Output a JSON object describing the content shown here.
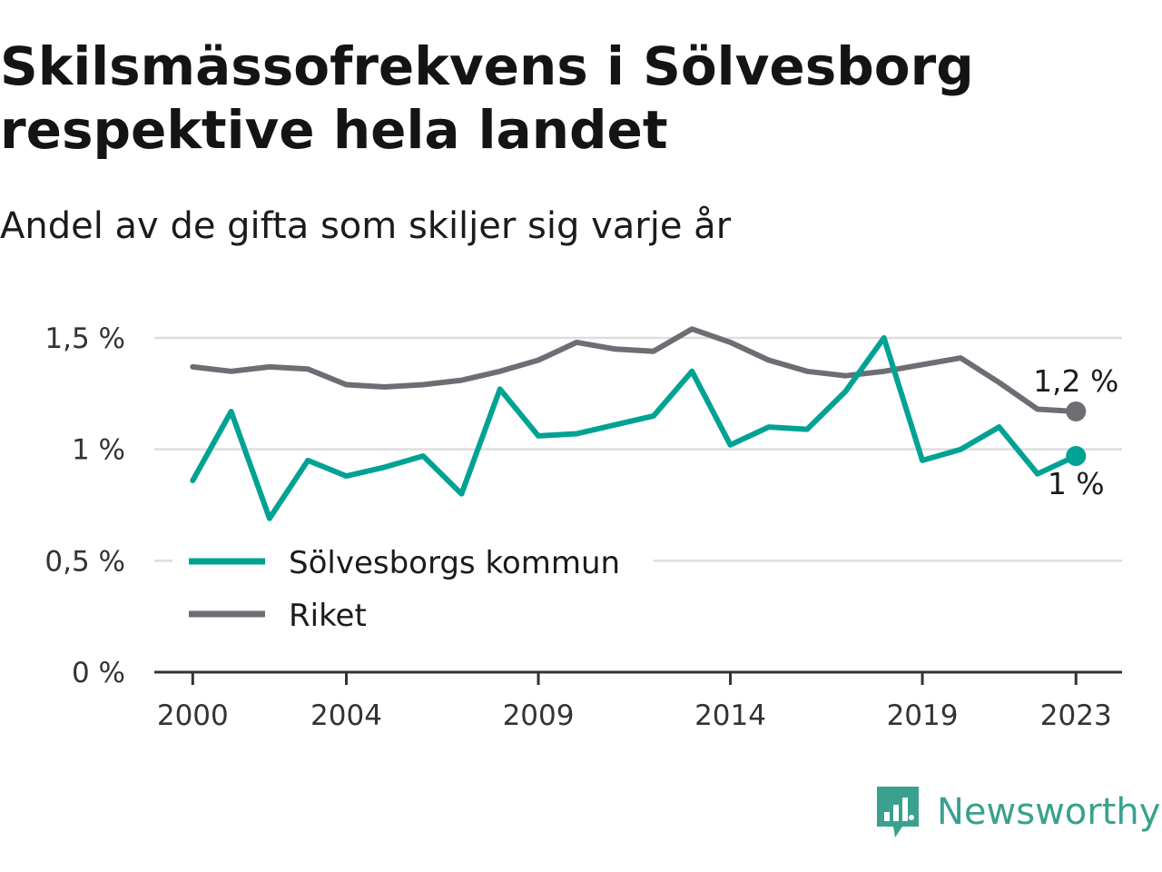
{
  "header": {
    "title": "Skilsmässofrekvens i Sölvesborg respektive hela landet",
    "subtitle": "Andel av de gifta som skiljer sig varje år"
  },
  "brand": {
    "name": "Newsworthy",
    "icon": "newsworthy-logo-icon",
    "color": "#3aa18e"
  },
  "colors": {
    "solvesborg": "#00a293",
    "riket": "#6d6d74",
    "grid": "#dddddd",
    "axis": "#333333"
  },
  "chart_data": {
    "type": "line",
    "title": "Skilsmässofrekvens i Sölvesborg respektive hela landet",
    "subtitle": "Andel av de gifta som skiljer sig varje år",
    "xlabel": "",
    "ylabel": "",
    "x": [
      2000,
      2001,
      2002,
      2003,
      2004,
      2005,
      2006,
      2007,
      2008,
      2009,
      2010,
      2011,
      2012,
      2013,
      2014,
      2015,
      2016,
      2017,
      2018,
      2019,
      2020,
      2021,
      2022,
      2023
    ],
    "xlim": [
      1999,
      2024.2
    ],
    "ylim": [
      0,
      1.5
    ],
    "y_ticks": [
      {
        "value": 0,
        "label": "0 %"
      },
      {
        "value": 0.5,
        "label": "0,5 %"
      },
      {
        "value": 1,
        "label": "1 %"
      },
      {
        "value": 1.5,
        "label": "1,5 %"
      }
    ],
    "x_ticks": [
      {
        "value": 2000,
        "label": "2000"
      },
      {
        "value": 2004,
        "label": "2004"
      },
      {
        "value": 2009,
        "label": "2009"
      },
      {
        "value": 2014,
        "label": "2014"
      },
      {
        "value": 2019,
        "label": "2019"
      },
      {
        "value": 2023,
        "label": "2023"
      }
    ],
    "grid": true,
    "legend_position": "bottom-left",
    "series": [
      {
        "name": "Sölvesborgs kommun",
        "key": "solvesborg",
        "color": "#00a293",
        "values": [
          0.86,
          1.17,
          0.69,
          0.95,
          0.88,
          0.92,
          0.97,
          0.8,
          1.27,
          1.06,
          1.07,
          1.11,
          1.15,
          1.35,
          1.02,
          1.1,
          1.09,
          1.26,
          1.5,
          0.95,
          1.0,
          1.1,
          0.89,
          0.97
        ],
        "end_label": "1 %"
      },
      {
        "name": "Riket",
        "key": "riket",
        "color": "#6d6d74",
        "values": [
          1.37,
          1.35,
          1.37,
          1.36,
          1.29,
          1.28,
          1.29,
          1.31,
          1.35,
          1.4,
          1.48,
          1.45,
          1.44,
          1.54,
          1.48,
          1.4,
          1.35,
          1.33,
          1.35,
          1.38,
          1.41,
          1.3,
          1.18,
          1.17
        ],
        "end_label": "1,2 %"
      }
    ]
  }
}
